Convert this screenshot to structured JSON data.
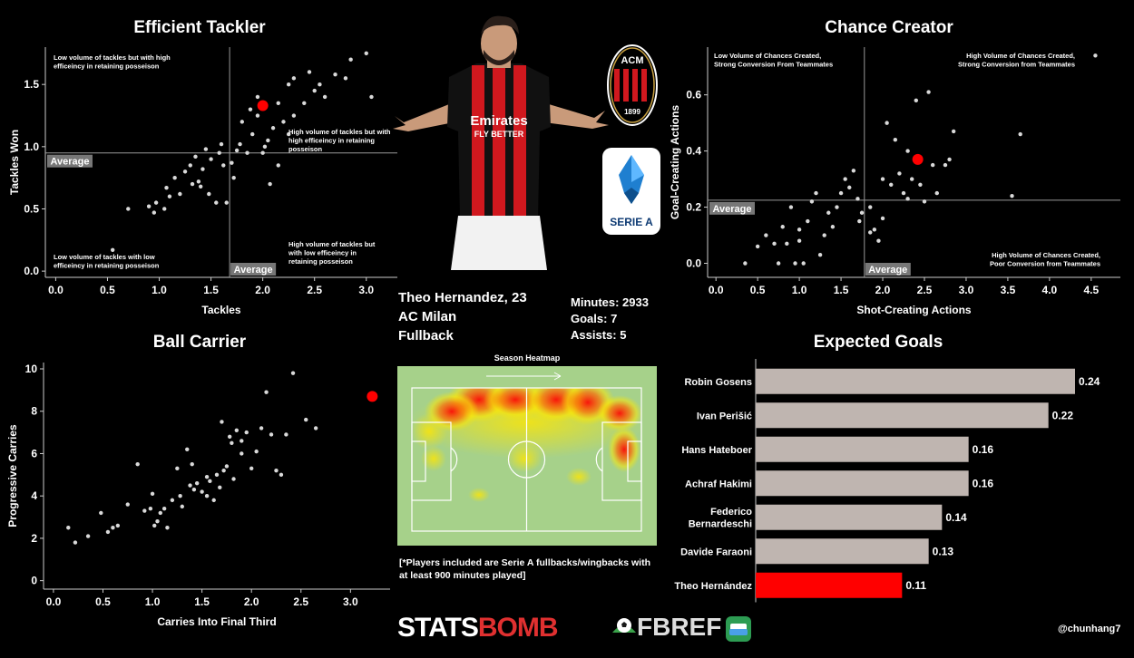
{
  "player": {
    "name_age": "Theo Hernandez, 23",
    "club": "AC Milan",
    "position": "Fullback",
    "minutes": "Minutes: 2933",
    "goals": "Goals: 7",
    "assists": "Assists: 5",
    "club_badge_text": "ACM",
    "club_badge_year": "1899",
    "league_badge_text": "SERIE A",
    "shirt_sponsor": "Emirates",
    "shirt_sponsor_2": "FLY BETTER"
  },
  "heatmap": {
    "title": "Season Heatmap",
    "note": "[*Players included are Serie A fullbacks/wingbacks with at least 900 minutes played]"
  },
  "footer": {
    "statsbomb_a": "STATS",
    "statsbomb_b": "BOMB",
    "fbref": "FBREF",
    "handle": "@chunhang7"
  },
  "colors": {
    "background": "#000000",
    "points": "#d9d9d9",
    "highlight": "#ff0000",
    "bars": "#bfb5b0",
    "average_box": "#777777",
    "pitch": "#a6d18a"
  },
  "chart_data": [
    {
      "id": "tackler",
      "type": "scatter",
      "title": "Efficient Tackler",
      "xlabel": "Tackles",
      "ylabel": "Tackles Won",
      "xlim": [
        -0.1,
        3.3
      ],
      "ylim": [
        -0.05,
        1.8
      ],
      "xticks": [
        "0.0",
        "0.5",
        "1.0",
        "1.5",
        "2.0",
        "2.5",
        "3.0"
      ],
      "xtick_values": [
        0,
        0.5,
        1,
        1.5,
        2,
        2.5,
        3
      ],
      "yticks": [
        "0.0",
        "0.5",
        "1.0",
        "1.5"
      ],
      "ytick_values": [
        0,
        0.5,
        1,
        1.5
      ],
      "average_x": 1.68,
      "average_y": 0.95,
      "average_label": "Average",
      "quadrant_labels": {
        "top_left": "Low volume of tackles but with high\nefficeincy in retaining posseison",
        "top_right": "High volume of tackles but with\nhigh efficeincy in retaining\nposseison",
        "bottom_left": "Low volume of tackles  with low\nefficeincy in retaining posseison",
        "bottom_right": "High volume of tackles but\nwith low efficeincy in\nretaining posseison"
      },
      "highlight": {
        "x": 2.0,
        "y": 1.33
      },
      "points": [
        [
          0.55,
          0.17
        ],
        [
          0.7,
          0.5
        ],
        [
          0.9,
          0.52
        ],
        [
          0.95,
          0.47
        ],
        [
          0.97,
          0.55
        ],
        [
          1.05,
          0.5
        ],
        [
          1.07,
          0.67
        ],
        [
          1.1,
          0.6
        ],
        [
          1.15,
          0.75
        ],
        [
          1.2,
          0.62
        ],
        [
          1.25,
          0.8
        ],
        [
          1.3,
          0.85
        ],
        [
          1.32,
          0.7
        ],
        [
          1.35,
          0.92
        ],
        [
          1.38,
          0.72
        ],
        [
          1.4,
          0.68
        ],
        [
          1.42,
          0.82
        ],
        [
          1.45,
          0.98
        ],
        [
          1.48,
          0.62
        ],
        [
          1.5,
          0.9
        ],
        [
          1.55,
          0.55
        ],
        [
          1.58,
          0.95
        ],
        [
          1.6,
          1.02
        ],
        [
          1.62,
          0.85
        ],
        [
          1.65,
          0.55
        ],
        [
          1.7,
          0.87
        ],
        [
          1.72,
          0.75
        ],
        [
          1.75,
          0.97
        ],
        [
          1.78,
          1.02
        ],
        [
          1.8,
          1.2
        ],
        [
          1.85,
          0.95
        ],
        [
          1.9,
          1.1
        ],
        [
          1.95,
          1.25
        ],
        [
          2.0,
          0.95
        ],
        [
          2.02,
          1.0
        ],
        [
          2.05,
          1.05
        ],
        [
          2.07,
          0.7
        ],
        [
          2.1,
          1.15
        ],
        [
          2.15,
          0.85
        ],
        [
          2.2,
          1.2
        ],
        [
          2.25,
          1.1
        ],
        [
          2.3,
          1.25
        ],
        [
          2.4,
          1.35
        ],
        [
          2.5,
          1.45
        ],
        [
          2.6,
          1.4
        ],
        [
          2.7,
          1.58
        ],
        [
          2.8,
          1.55
        ],
        [
          2.85,
          1.7
        ],
        [
          3.0,
          1.75
        ],
        [
          2.25,
          1.5
        ],
        [
          2.45,
          1.6
        ],
        [
          2.3,
          1.55
        ],
        [
          2.55,
          1.5
        ],
        [
          1.88,
          1.3
        ],
        [
          2.15,
          1.35
        ],
        [
          3.05,
          1.4
        ],
        [
          1.95,
          1.4
        ]
      ]
    },
    {
      "id": "creator",
      "type": "scatter",
      "title": "Chance Creator",
      "xlabel": "Shot-Creating Actions",
      "ylabel": "Goal-Creating Actions",
      "xlim": [
        -0.1,
        4.85
      ],
      "ylim": [
        -0.05,
        0.77
      ],
      "xticks": [
        "0.0",
        "0.5",
        "1.0",
        "1.5",
        "2.0",
        "2.5",
        "3.0",
        "3.5",
        "4.0",
        "4.5"
      ],
      "xtick_values": [
        0,
        0.5,
        1,
        1.5,
        2,
        2.5,
        3,
        3.5,
        4,
        4.5
      ],
      "yticks": [
        "0.0",
        "0.2",
        "0.4",
        "0.6"
      ],
      "ytick_values": [
        0,
        0.2,
        0.4,
        0.6
      ],
      "average_x": 1.78,
      "average_y": 0.225,
      "average_label": "Average",
      "quadrant_labels": {
        "top_left": "Low Volume of Chances Created,\nStrong Conversion From Teammates",
        "top_right": "High Volume of Chances Created,\nStrong Conversion from Teammates",
        "bottom_right": "High Volume of Chances Created,\nPoor Conversion from Teammates"
      },
      "highlight": {
        "x": 2.42,
        "y": 0.37
      },
      "points": [
        [
          0.35,
          0.0
        ],
        [
          0.5,
          0.06
        ],
        [
          0.6,
          0.1
        ],
        [
          0.7,
          0.07
        ],
        [
          0.75,
          0.0
        ],
        [
          0.8,
          0.13
        ],
        [
          0.85,
          0.07
        ],
        [
          0.9,
          0.2
        ],
        [
          0.95,
          0.0
        ],
        [
          1.0,
          0.08
        ],
        [
          1.0,
          0.12
        ],
        [
          1.05,
          0.0
        ],
        [
          1.1,
          0.15
        ],
        [
          1.15,
          0.22
        ],
        [
          1.2,
          0.25
        ],
        [
          1.25,
          0.03
        ],
        [
          1.3,
          0.1
        ],
        [
          1.35,
          0.18
        ],
        [
          1.4,
          0.13
        ],
        [
          1.45,
          0.2
        ],
        [
          1.5,
          0.25
        ],
        [
          1.55,
          0.3
        ],
        [
          1.6,
          0.27
        ],
        [
          1.65,
          0.33
        ],
        [
          1.7,
          0.23
        ],
        [
          1.72,
          0.15
        ],
        [
          1.75,
          0.18
        ],
        [
          1.85,
          0.2
        ],
        [
          1.9,
          0.12
        ],
        [
          1.95,
          0.08
        ],
        [
          2.0,
          0.3
        ],
        [
          2.05,
          0.5
        ],
        [
          2.1,
          0.28
        ],
        [
          2.15,
          0.44
        ],
        [
          2.2,
          0.32
        ],
        [
          2.25,
          0.25
        ],
        [
          2.3,
          0.4
        ],
        [
          2.35,
          0.3
        ],
        [
          2.4,
          0.58
        ],
        [
          2.45,
          0.28
        ],
        [
          2.5,
          0.22
        ],
        [
          2.55,
          0.61
        ],
        [
          2.6,
          0.35
        ],
        [
          2.65,
          0.25
        ],
        [
          2.75,
          0.35
        ],
        [
          2.8,
          0.37
        ],
        [
          2.85,
          0.47
        ],
        [
          3.55,
          0.24
        ],
        [
          3.65,
          0.46
        ],
        [
          4.55,
          0.74
        ],
        [
          2.3,
          0.23
        ],
        [
          2.0,
          0.16
        ],
        [
          1.85,
          0.11
        ]
      ]
    },
    {
      "id": "carrier",
      "type": "scatter",
      "title": "Ball Carrier",
      "xlabel": "Carries Into Final Third",
      "ylabel": "Progressive Carries",
      "xlim": [
        -0.1,
        3.4
      ],
      "ylim": [
        -0.4,
        10.3
      ],
      "xticks": [
        "0.0",
        "0.5",
        "1.0",
        "1.5",
        "2.0",
        "2.5",
        "3.0"
      ],
      "xtick_values": [
        0,
        0.5,
        1,
        1.5,
        2,
        2.5,
        3
      ],
      "yticks": [
        "0",
        "2",
        "4",
        "6",
        "8",
        "10"
      ],
      "ytick_values": [
        0,
        2,
        4,
        6,
        8,
        10
      ],
      "highlight": {
        "x": 3.22,
        "y": 8.7
      },
      "points": [
        [
          0.15,
          2.5
        ],
        [
          0.22,
          1.8
        ],
        [
          0.35,
          2.1
        ],
        [
          0.48,
          3.2
        ],
        [
          0.55,
          2.3
        ],
        [
          0.6,
          2.5
        ],
        [
          0.65,
          2.6
        ],
        [
          0.75,
          3.6
        ],
        [
          0.85,
          5.5
        ],
        [
          0.92,
          3.3
        ],
        [
          0.98,
          3.4
        ],
        [
          1.0,
          4.1
        ],
        [
          1.02,
          2.6
        ],
        [
          1.05,
          2.8
        ],
        [
          1.08,
          3.2
        ],
        [
          1.12,
          3.4
        ],
        [
          1.15,
          2.5
        ],
        [
          1.2,
          3.8
        ],
        [
          1.25,
          5.3
        ],
        [
          1.28,
          4.0
        ],
        [
          1.3,
          3.5
        ],
        [
          1.35,
          6.2
        ],
        [
          1.38,
          4.5
        ],
        [
          1.42,
          4.3
        ],
        [
          1.45,
          4.6
        ],
        [
          1.5,
          4.2
        ],
        [
          1.55,
          4.9
        ],
        [
          1.58,
          4.7
        ],
        [
          1.62,
          3.8
        ],
        [
          1.65,
          5.0
        ],
        [
          1.68,
          4.4
        ],
        [
          1.7,
          7.5
        ],
        [
          1.72,
          5.2
        ],
        [
          1.75,
          5.4
        ],
        [
          1.78,
          6.8
        ],
        [
          1.8,
          6.5
        ],
        [
          1.82,
          4.8
        ],
        [
          1.85,
          7.1
        ],
        [
          1.9,
          6.0
        ],
        [
          1.95,
          7.0
        ],
        [
          2.0,
          5.3
        ],
        [
          2.05,
          6.1
        ],
        [
          2.1,
          7.2
        ],
        [
          2.15,
          8.9
        ],
        [
          2.2,
          6.9
        ],
        [
          2.25,
          5.2
        ],
        [
          2.3,
          5.0
        ],
        [
          2.35,
          6.9
        ],
        [
          2.42,
          9.8
        ],
        [
          2.55,
          7.6
        ],
        [
          2.65,
          7.2
        ],
        [
          1.55,
          4.0
        ],
        [
          1.4,
          5.5
        ],
        [
          1.9,
          6.6
        ]
      ]
    },
    {
      "id": "xg",
      "type": "bar",
      "title": "Expected Goals",
      "orientation": "horizontal",
      "categories": [
        "Robin Gosens",
        "Ivan Perišić",
        "Hans Hateboer",
        "Achraf Hakimi",
        "Federico\nBernardeschi",
        "Davide Faraoni",
        "Theo Hernández"
      ],
      "values": [
        0.24,
        0.22,
        0.16,
        0.16,
        0.14,
        0.13,
        0.11
      ],
      "value_labels": [
        "0.24",
        "0.22",
        "0.16",
        "0.16",
        "0.14",
        "0.13",
        "0.11"
      ],
      "highlight_index": 6,
      "xlim": [
        0,
        0.24
      ]
    }
  ]
}
